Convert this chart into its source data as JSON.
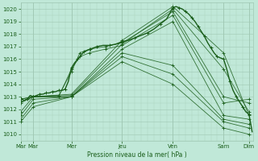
{
  "background_color": "#c0e8d8",
  "grid_color": "#a0c8b4",
  "line_color": "#1a5e1a",
  "xlabel": "Pression niveau de la mer( hPa )",
  "ylim": [
    1009.5,
    1020.5
  ],
  "yticks": [
    1010,
    1011,
    1012,
    1013,
    1014,
    1015,
    1016,
    1017,
    1018,
    1019,
    1020
  ],
  "xtick_labels": [
    "Mar",
    "Mar",
    "Mer",
    "Jeu",
    "Ven",
    "Sam",
    "Dim"
  ],
  "xtick_positions": [
    0,
    12,
    48,
    96,
    144,
    192,
    216
  ],
  "total_hours": 220,
  "lines": [
    {
      "pts": [
        [
          0,
          1012.8
        ],
        [
          12,
          1013.0
        ],
        [
          48,
          1013.2
        ],
        [
          96,
          1017.5
        ],
        [
          144,
          1020.2
        ],
        [
          192,
          1016.5
        ],
        [
          216,
          1011.5
        ]
      ],
      "lw": 0.6
    },
    {
      "pts": [
        [
          0,
          1012.5
        ],
        [
          12,
          1013.0
        ],
        [
          48,
          1013.1
        ],
        [
          96,
          1017.2
        ],
        [
          144,
          1020.0
        ],
        [
          192,
          1015.2
        ],
        [
          216,
          1011.8
        ]
      ],
      "lw": 0.6
    },
    {
      "pts": [
        [
          0,
          1011.8
        ],
        [
          12,
          1013.0
        ],
        [
          48,
          1013.0
        ],
        [
          96,
          1016.8
        ],
        [
          144,
          1019.0
        ],
        [
          192,
          1011.5
        ],
        [
          216,
          1011.2
        ]
      ],
      "lw": 0.6
    },
    {
      "pts": [
        [
          0,
          1011.5
        ],
        [
          12,
          1012.8
        ],
        [
          48,
          1013.0
        ],
        [
          96,
          1016.5
        ],
        [
          144,
          1015.5
        ],
        [
          192,
          1011.2
        ],
        [
          216,
          1010.8
        ]
      ],
      "lw": 0.6
    },
    {
      "pts": [
        [
          0,
          1011.2
        ],
        [
          12,
          1012.5
        ],
        [
          48,
          1013.0
        ],
        [
          96,
          1016.2
        ],
        [
          144,
          1014.8
        ],
        [
          192,
          1011.0
        ],
        [
          216,
          1010.5
        ]
      ],
      "lw": 0.6
    },
    {
      "pts": [
        [
          0,
          1011.0
        ],
        [
          12,
          1012.2
        ],
        [
          48,
          1013.0
        ],
        [
          96,
          1015.8
        ],
        [
          144,
          1014.0
        ],
        [
          192,
          1010.5
        ],
        [
          216,
          1010.0
        ]
      ],
      "lw": 0.6
    },
    {
      "pts": [
        [
          0,
          1012.8
        ],
        [
          12,
          1013.0
        ],
        [
          36,
          1013.1
        ],
        [
          48,
          1015.0
        ],
        [
          56,
          1016.5
        ],
        [
          65,
          1016.8
        ],
        [
          80,
          1017.0
        ],
        [
          96,
          1017.3
        ],
        [
          144,
          1019.8
        ],
        [
          192,
          1013.0
        ],
        [
          216,
          1012.5
        ]
      ],
      "lw": 0.6
    },
    {
      "pts": [
        [
          0,
          1012.6
        ],
        [
          12,
          1013.0
        ],
        [
          36,
          1013.0
        ],
        [
          48,
          1015.2
        ],
        [
          56,
          1016.2
        ],
        [
          65,
          1016.5
        ],
        [
          80,
          1016.8
        ],
        [
          96,
          1017.1
        ],
        [
          144,
          1019.5
        ],
        [
          192,
          1012.5
        ],
        [
          216,
          1012.8
        ]
      ],
      "lw": 0.6
    }
  ],
  "obs_pts": [
    [
      0,
      1012.9
    ],
    [
      3,
      1012.7
    ],
    [
      6,
      1012.8
    ],
    [
      9,
      1013.1
    ],
    [
      12,
      1013.0
    ],
    [
      15,
      1013.1
    ],
    [
      18,
      1013.2
    ],
    [
      21,
      1013.2
    ],
    [
      24,
      1013.3
    ],
    [
      27,
      1013.3
    ],
    [
      30,
      1013.4
    ],
    [
      33,
      1013.4
    ],
    [
      36,
      1013.5
    ],
    [
      39,
      1013.5
    ],
    [
      42,
      1013.6
    ],
    [
      45,
      1014.2
    ],
    [
      48,
      1015.3
    ],
    [
      51,
      1015.7
    ],
    [
      54,
      1016.0
    ],
    [
      57,
      1016.3
    ],
    [
      60,
      1016.6
    ],
    [
      63,
      1016.7
    ],
    [
      66,
      1016.8
    ],
    [
      69,
      1016.9
    ],
    [
      72,
      1017.0
    ],
    [
      78,
      1017.1
    ],
    [
      84,
      1017.1
    ],
    [
      90,
      1017.2
    ],
    [
      96,
      1017.4
    ],
    [
      102,
      1017.5
    ],
    [
      108,
      1017.7
    ],
    [
      114,
      1017.9
    ],
    [
      120,
      1018.1
    ],
    [
      126,
      1018.4
    ],
    [
      132,
      1018.8
    ],
    [
      138,
      1019.2
    ],
    [
      144,
      1020.1
    ],
    [
      147,
      1020.2
    ],
    [
      150,
      1020.1
    ],
    [
      153,
      1020.0
    ],
    [
      156,
      1019.8
    ],
    [
      159,
      1019.6
    ],
    [
      162,
      1019.3
    ],
    [
      165,
      1019.0
    ],
    [
      168,
      1018.6
    ],
    [
      171,
      1018.2
    ],
    [
      174,
      1017.8
    ],
    [
      177,
      1017.3
    ],
    [
      180,
      1016.9
    ],
    [
      183,
      1016.5
    ],
    [
      186,
      1016.2
    ],
    [
      189,
      1016.1
    ],
    [
      192,
      1016.0
    ],
    [
      195,
      1015.2
    ],
    [
      198,
      1014.2
    ],
    [
      201,
      1013.5
    ],
    [
      204,
      1013.0
    ],
    [
      207,
      1012.6
    ],
    [
      210,
      1012.2
    ],
    [
      213,
      1011.8
    ],
    [
      216,
      1011.6
    ],
    [
      219,
      1010.2
    ]
  ]
}
